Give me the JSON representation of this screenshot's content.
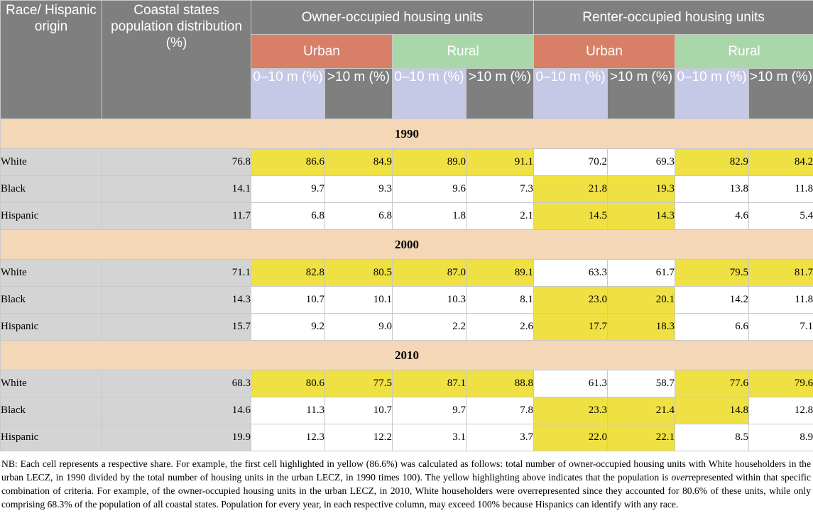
{
  "colors": {
    "header_gray": "#7f7f7f",
    "urban": "#d77f67",
    "rural": "#a9d7a9",
    "band_low": "#c5c9e5",
    "year_band": "#f3d7b6",
    "label_gray": "#d4d4d4",
    "highlight": "#efe043"
  },
  "header": {
    "race_col": "Race/ Hispanic origin",
    "pop_col": "Coastal states population distribution (%)",
    "owner_group": "Owner-occupied housing units",
    "renter_group": "Renter-occupied housing units",
    "urban": "Urban",
    "rural": "Rural",
    "low_band": "0–10 m (%)",
    "high_band": ">10 m (%)"
  },
  "years": [
    {
      "year": "1990",
      "rows": [
        {
          "race": "White",
          "pop": "76.8",
          "values": [
            "86.6",
            "84.9",
            "89.0",
            "91.1",
            "70.2",
            "69.3",
            "82.9",
            "84.2"
          ],
          "highlight": [
            true,
            true,
            true,
            true,
            false,
            false,
            true,
            true
          ]
        },
        {
          "race": "Black",
          "pop": "14.1",
          "values": [
            "9.7",
            "9.3",
            "9.6",
            "7.3",
            "21.8",
            "19.3",
            "13.8",
            "11.8"
          ],
          "highlight": [
            false,
            false,
            false,
            false,
            true,
            true,
            false,
            false
          ]
        },
        {
          "race": "Hispanic",
          "pop": "11.7",
          "values": [
            "6.8",
            "6.8",
            "1.8",
            "2.1",
            "14.5",
            "14.3",
            "4.6",
            "5.4"
          ],
          "highlight": [
            false,
            false,
            false,
            false,
            true,
            true,
            false,
            false
          ]
        }
      ]
    },
    {
      "year": "2000",
      "rows": [
        {
          "race": "White",
          "pop": "71.1",
          "values": [
            "82.8",
            "80.5",
            "87.0",
            "89.1",
            "63.3",
            "61.7",
            "79.5",
            "81.7"
          ],
          "highlight": [
            true,
            true,
            true,
            true,
            false,
            false,
            true,
            true
          ]
        },
        {
          "race": "Black",
          "pop": "14.3",
          "values": [
            "10.7",
            "10.1",
            "10.3",
            "8.1",
            "23.0",
            "20.1",
            "14.2",
            "11.8"
          ],
          "highlight": [
            false,
            false,
            false,
            false,
            true,
            true,
            false,
            false
          ]
        },
        {
          "race": "Hispanic",
          "pop": "15.7",
          "values": [
            "9.2",
            "9.0",
            "2.2",
            "2.6",
            "17.7",
            "18.3",
            "6.6",
            "7.1"
          ],
          "highlight": [
            false,
            false,
            false,
            false,
            true,
            true,
            false,
            false
          ]
        }
      ]
    },
    {
      "year": "2010",
      "rows": [
        {
          "race": "White",
          "pop": "68.3",
          "values": [
            "80.6",
            "77.5",
            "87.1",
            "88.8",
            "61.3",
            "58.7",
            "77.6",
            "79.6"
          ],
          "highlight": [
            true,
            true,
            true,
            true,
            false,
            false,
            true,
            true
          ]
        },
        {
          "race": "Black",
          "pop": "14.6",
          "values": [
            "11.3",
            "10.7",
            "9.7",
            "7.8",
            "23.3",
            "21.4",
            "14.8",
            "12.8"
          ],
          "highlight": [
            false,
            false,
            false,
            false,
            true,
            true,
            true,
            false
          ]
        },
        {
          "race": "Hispanic",
          "pop": "19.9",
          "values": [
            "12.3",
            "12.2",
            "3.1",
            "3.7",
            "22.0",
            "22.1",
            "8.5",
            "8.9"
          ],
          "highlight": [
            false,
            false,
            false,
            false,
            true,
            true,
            false,
            false
          ]
        }
      ]
    }
  ],
  "note": {
    "part1": "NB: Each cell represents a respective share. For example, the first cell highlighted in yellow (86.6%) was calculated as follows: total number of owner-occupied housing units with White householders in the urban LECZ, in 1990 divided by the total number of housing units in the urban LECZ, in 1990 times 100). The yellow highlighting above indicates that the population is ",
    "em": "over",
    "part2": "represented within that specific combination of criteria. For example, of the owner-occupied housing units in the urban LECZ, in 2010, White householders were overrepresented since they accounted for 80.6% of these units, while only comprising 68.3% of the population of all coastal states. Population for every year, in each respective column, may exceed 100% because Hispanics can identify with any race."
  }
}
